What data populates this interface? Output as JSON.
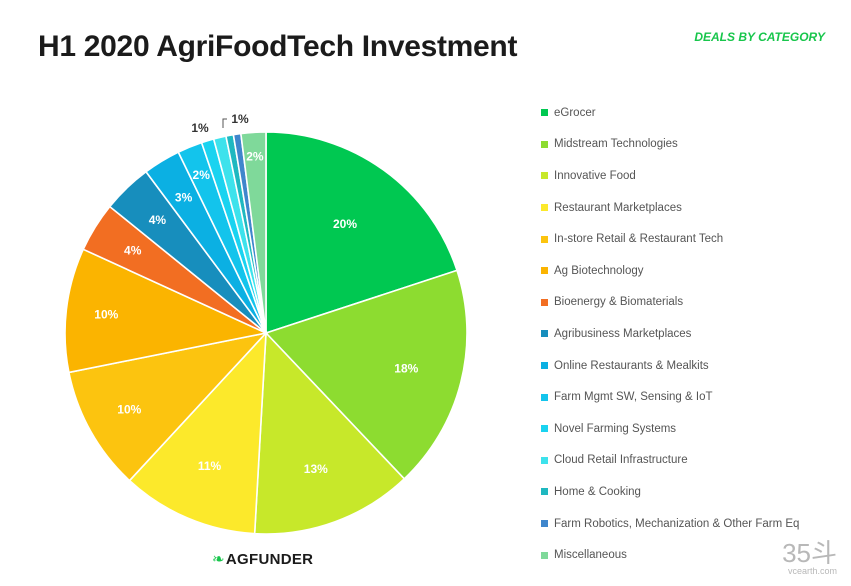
{
  "title": "H1 2020 AgriFoodTech Investment",
  "subtitle": "DEALS BY CATEGORY",
  "logo_text": "AGFUNDER",
  "watermark": {
    "mark": "35斗",
    "site": "vcearth.com"
  },
  "chart_data": {
    "type": "pie",
    "title": "H1 2020 AgriFoodTech Investment",
    "subtitle": "DEALS BY CATEGORY",
    "legend_position": "right",
    "start": "top, clockwise",
    "slices": [
      {
        "label": "eGrocer",
        "value": 20,
        "display": "20%",
        "color": "#00c851"
      },
      {
        "label": "Midstream Technologies",
        "value": 18,
        "display": "18%",
        "color": "#8ddc30"
      },
      {
        "label": "Innovative Food",
        "value": 13,
        "display": "13%",
        "color": "#c7e82a"
      },
      {
        "label": "Restaurant Marketplaces",
        "value": 11,
        "display": "11%",
        "color": "#fce92b"
      },
      {
        "label": "In-store Retail & Restaurant Tech",
        "value": 10,
        "display": "10%",
        "color": "#fcc40f"
      },
      {
        "label": "Ag Biotechnology",
        "value": 10,
        "display": "10%",
        "color": "#fbb400"
      },
      {
        "label": "Bioenergy & Biomaterials",
        "value": 4,
        "display": "4%",
        "color": "#f26e22"
      },
      {
        "label": "Agribusiness Marketplaces",
        "value": 4,
        "display": "4%",
        "color": "#178ebd"
      },
      {
        "label": "Online Restaurants & Mealkits",
        "value": 3,
        "display": "3%",
        "color": "#0bb0e3"
      },
      {
        "label": "Farm Mgmt SW, Sensing & IoT",
        "value": 2,
        "display": "2%",
        "color": "#13c4ec"
      },
      {
        "label": "Novel Farming Systems",
        "value": 1,
        "display": "1%",
        "color": "#1ad3f0"
      },
      {
        "label": "Cloud Retail Infrastructure",
        "value": 1,
        "display": "",
        "color": "#3de2ec"
      },
      {
        "label": "Home & Cooking",
        "value": 0.6,
        "display": "1%",
        "color": "#1fb8c0"
      },
      {
        "label": "Farm Robotics, Mechanization & Other Farm Eq",
        "value": 0.6,
        "display": "",
        "color": "#3f86cc"
      },
      {
        "label": "Miscellaneous",
        "value": 2,
        "display": "2%",
        "color": "#7fd99a"
      }
    ]
  }
}
